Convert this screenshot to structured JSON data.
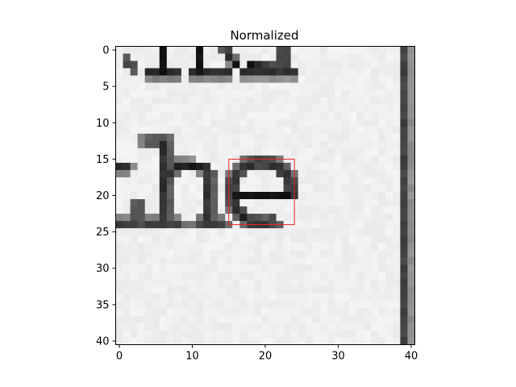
{
  "chart_data": {
    "type": "heatmap",
    "title": "Normalized",
    "xlabel": "",
    "ylabel": "",
    "colormap": "gray",
    "grid": false,
    "xlim": [
      -0.5,
      40.5
    ],
    "ylim": [
      40.5,
      -0.5
    ],
    "x_ticks": [
      0,
      10,
      20,
      30,
      40
    ],
    "y_ticks": [
      0,
      5,
      10,
      15,
      20,
      25,
      30,
      35,
      40
    ],
    "grid_size": [
      41,
      41
    ],
    "content_description": "grayscale crop of printed text showing the letters 'he' with fragments of letters above and a dark vertical bar near the right edge",
    "highlight_box": {
      "color": "#e8231f",
      "x_range": [
        15,
        24
      ],
      "y_range": [
        15,
        24
      ]
    }
  }
}
